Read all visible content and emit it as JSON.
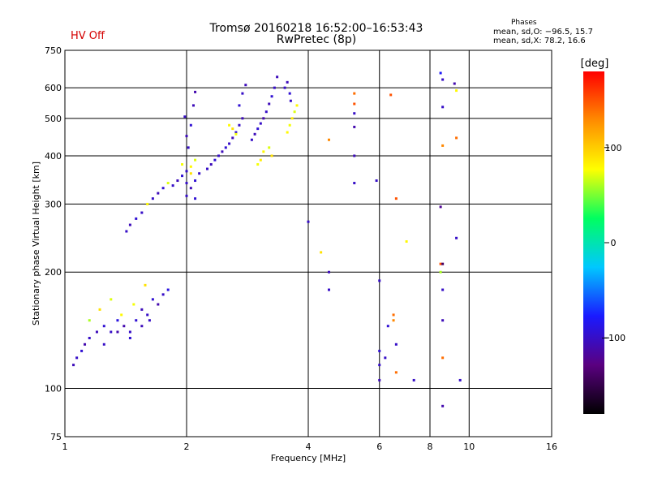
{
  "header": {
    "hv_status": "HV Off",
    "title_line1": "Tromsø 20160218 16:52:00–16:53:43",
    "title_line2": "RwPretec (8p)",
    "phases_title": "Phases",
    "phases_o": "mean, sd,O: −96.5, 15.7",
    "phases_x": "mean, sd,X:  78.2, 16.6"
  },
  "colorbar": {
    "unit_label": "[deg]",
    "ticks": [
      {
        "label": "100",
        "value": 100
      },
      {
        "label": "0",
        "value": 0
      },
      {
        "label": "−100",
        "value": -100
      }
    ],
    "range": [
      -180,
      180
    ],
    "colors": [
      "#000000",
      "#5a0080",
      "#1a1aff",
      "#00c8ff",
      "#00ff60",
      "#ffff00",
      "#ff8c00",
      "#ff0000"
    ]
  },
  "chart_data": {
    "type": "scatter",
    "title": "Tromsø 20160218 16:52:00–16:53:43",
    "subtitle": "RwPretec (8p)",
    "xlabel": "Frequency [MHz]",
    "ylabel": "Stationary phase Virtual Height [km]",
    "x_scale": "log",
    "y_scale": "log",
    "xlim": [
      1,
      16
    ],
    "ylim": [
      75,
      750
    ],
    "x_ticks": [
      1,
      2,
      4,
      6,
      8,
      10,
      16
    ],
    "x_tick_labels": [
      "1",
      "2",
      "4",
      "6",
      "8",
      "10",
      "16"
    ],
    "y_ticks": [
      75,
      100,
      200,
      300,
      400,
      500,
      600,
      750
    ],
    "y_tick_labels": [
      "75",
      "100",
      "200",
      "300",
      "400",
      "500",
      "600",
      "750"
    ],
    "grid": true,
    "series": [
      {
        "points": [
          [
            1.05,
            115,
            -105
          ],
          [
            1.07,
            120,
            -100
          ],
          [
            1.1,
            125,
            -95
          ],
          [
            1.12,
            130,
            -110
          ],
          [
            1.15,
            135,
            -100
          ],
          [
            1.2,
            140,
            -105
          ],
          [
            1.25,
            145,
            -95
          ],
          [
            1.3,
            140,
            -100
          ],
          [
            1.35,
            150,
            -90
          ],
          [
            1.4,
            145,
            -110
          ],
          [
            1.45,
            140,
            -100
          ],
          [
            1.5,
            150,
            -95
          ],
          [
            1.55,
            160,
            -105
          ],
          [
            1.6,
            155,
            -100
          ],
          [
            1.65,
            170,
            -95
          ],
          [
            1.7,
            165,
            -110
          ],
          [
            1.75,
            175,
            -100
          ],
          [
            1.8,
            180,
            -90
          ],
          [
            1.15,
            150,
            60
          ],
          [
            1.22,
            160,
            90
          ],
          [
            1.3,
            170,
            70
          ],
          [
            1.38,
            155,
            80
          ],
          [
            1.48,
            165,
            75
          ],
          [
            1.58,
            185,
            90
          ],
          [
            1.25,
            130,
            -100
          ],
          [
            1.35,
            140,
            -110
          ],
          [
            1.45,
            135,
            -95
          ],
          [
            1.55,
            145,
            -105
          ],
          [
            1.62,
            150,
            -100
          ],
          [
            1.42,
            255,
            -100
          ],
          [
            1.45,
            265,
            -105
          ],
          [
            1.5,
            275,
            -95
          ],
          [
            1.55,
            285,
            -100
          ],
          [
            1.6,
            300,
            80
          ],
          [
            1.65,
            310,
            -100
          ],
          [
            1.7,
            320,
            -105
          ],
          [
            1.75,
            330,
            -95
          ],
          [
            1.8,
            340,
            70
          ],
          [
            1.85,
            335,
            -100
          ],
          [
            1.9,
            345,
            -105
          ],
          [
            1.95,
            355,
            -95
          ],
          [
            2.0,
            365,
            -100
          ],
          [
            2.05,
            375,
            80
          ],
          [
            2.02,
            420,
            -100
          ],
          [
            2.0,
            450,
            -105
          ],
          [
            2.05,
            480,
            -95
          ],
          [
            1.98,
            505,
            -100
          ],
          [
            2.08,
            540,
            -105
          ],
          [
            2.1,
            585,
            -110
          ],
          [
            2.0,
            340,
            -100
          ],
          [
            2.05,
            330,
            -105
          ],
          [
            2.1,
            345,
            -95
          ],
          [
            2.15,
            360,
            -100
          ],
          [
            2.0,
            315,
            -100
          ],
          [
            2.1,
            310,
            -95
          ],
          [
            1.95,
            380,
            75
          ],
          [
            2.05,
            360,
            90
          ],
          [
            2.1,
            390,
            70
          ],
          [
            2.25,
            370,
            -100
          ],
          [
            2.3,
            380,
            -105
          ],
          [
            2.35,
            390,
            -95
          ],
          [
            2.4,
            400,
            -100
          ],
          [
            2.45,
            410,
            -105
          ],
          [
            2.5,
            420,
            -95
          ],
          [
            2.55,
            430,
            -100
          ],
          [
            2.6,
            445,
            -105
          ],
          [
            2.65,
            460,
            -95
          ],
          [
            2.7,
            480,
            -100
          ],
          [
            2.75,
            500,
            -105
          ],
          [
            2.7,
            540,
            -95
          ],
          [
            2.75,
            580,
            -100
          ],
          [
            2.8,
            610,
            -105
          ],
          [
            2.55,
            480,
            80
          ],
          [
            2.6,
            470,
            90
          ],
          [
            2.65,
            455,
            75
          ],
          [
            2.9,
            440,
            -100
          ],
          [
            2.95,
            455,
            -105
          ],
          [
            3.0,
            470,
            -95
          ],
          [
            3.05,
            485,
            -100
          ],
          [
            3.1,
            500,
            -110
          ],
          [
            3.15,
            520,
            -100
          ],
          [
            3.2,
            545,
            -105
          ],
          [
            3.25,
            570,
            -95
          ],
          [
            3.3,
            600,
            -100
          ],
          [
            3.35,
            640,
            -105
          ],
          [
            3.0,
            380,
            75
          ],
          [
            3.05,
            390,
            85
          ],
          [
            3.1,
            410,
            80
          ],
          [
            3.2,
            420,
            70
          ],
          [
            3.25,
            400,
            90
          ],
          [
            3.5,
            600,
            -100
          ],
          [
            3.55,
            620,
            -105
          ],
          [
            3.6,
            580,
            -95
          ],
          [
            3.62,
            555,
            -100
          ],
          [
            3.55,
            460,
            80
          ],
          [
            3.6,
            480,
            75
          ],
          [
            3.65,
            500,
            85
          ],
          [
            3.7,
            520,
            70
          ],
          [
            3.75,
            540,
            80
          ],
          [
            4.0,
            270,
            -100
          ],
          [
            4.3,
            225,
            90
          ],
          [
            4.5,
            200,
            -105
          ],
          [
            4.5,
            180,
            -100
          ],
          [
            4.5,
            440,
            130
          ],
          [
            5.2,
            580,
            140
          ],
          [
            5.2,
            545,
            150
          ],
          [
            5.2,
            515,
            -100
          ],
          [
            5.2,
            475,
            -110
          ],
          [
            5.2,
            400,
            -105
          ],
          [
            5.2,
            340,
            -100
          ],
          [
            5.9,
            345,
            -100
          ],
          [
            6.0,
            190,
            -100
          ],
          [
            6.0,
            125,
            -95
          ],
          [
            6.0,
            115,
            -100
          ],
          [
            6.0,
            105,
            -105
          ],
          [
            6.2,
            120,
            -100
          ],
          [
            6.3,
            145,
            -95
          ],
          [
            6.4,
            575,
            150
          ],
          [
            6.5,
            155,
            140
          ],
          [
            6.5,
            150,
            130
          ],
          [
            6.6,
            310,
            150
          ],
          [
            6.6,
            130,
            -100
          ],
          [
            6.6,
            110,
            140
          ],
          [
            7.0,
            240,
            80
          ],
          [
            7.3,
            105,
            -100
          ],
          [
            8.5,
            655,
            -80
          ],
          [
            8.6,
            630,
            -100
          ],
          [
            8.6,
            535,
            -100
          ],
          [
            8.6,
            425,
            130
          ],
          [
            8.5,
            295,
            -120
          ],
          [
            8.5,
            210,
            150
          ],
          [
            8.6,
            210,
            -140
          ],
          [
            8.5,
            200,
            60
          ],
          [
            8.6,
            180,
            -100
          ],
          [
            8.6,
            150,
            -105
          ],
          [
            8.6,
            120,
            140
          ],
          [
            8.6,
            90,
            -110
          ],
          [
            9.2,
            615,
            -110
          ],
          [
            9.3,
            590,
            80
          ],
          [
            9.3,
            445,
            140
          ],
          [
            9.3,
            245,
            -100
          ],
          [
            9.5,
            105,
            -100
          ]
        ]
      }
    ]
  }
}
